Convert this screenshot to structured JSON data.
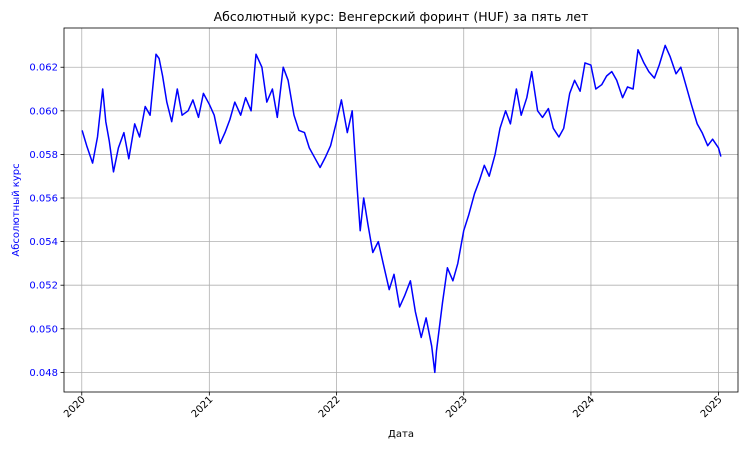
{
  "chart_data": {
    "type": "line",
    "title": "Абсолютный курс: Венгерский форинт (HUF) за пять лет",
    "xlabel": "Дата",
    "ylabel": "Абсолютный курс",
    "xlim": [
      "2019-11-11",
      "2025-02-26"
    ],
    "ylim": [
      0.0471,
      0.0638
    ],
    "grid": true,
    "x_ticks": [
      "2020",
      "2021",
      "2022",
      "2023",
      "2024",
      "2025"
    ],
    "y_ticks": [
      "0.048",
      "0.050",
      "0.052",
      "0.054",
      "0.056",
      "0.058",
      "0.060",
      "0.062"
    ],
    "colors": {
      "line": "#0000ff",
      "y_axis": "#0000ff"
    },
    "series": [
      {
        "x": [
          "2020-01-02",
          "2020-01-15",
          "2020-02-01",
          "2020-02-15",
          "2020-03-01",
          "2020-03-10",
          "2020-03-20",
          "2020-04-01",
          "2020-04-15",
          "2020-05-01",
          "2020-05-15",
          "2020-06-01",
          "2020-06-15",
          "2020-07-01",
          "2020-07-15",
          "2020-08-01",
          "2020-08-10",
          "2020-08-20",
          "2020-09-01",
          "2020-09-15",
          "2020-10-01",
          "2020-10-15",
          "2020-11-01",
          "2020-11-15",
          "2020-12-01",
          "2020-12-15",
          "2021-01-01",
          "2021-01-15",
          "2021-02-01",
          "2021-02-15",
          "2021-03-01",
          "2021-03-15",
          "2021-04-01",
          "2021-04-15",
          "2021-05-01",
          "2021-05-15",
          "2021-06-01",
          "2021-06-15",
          "2021-07-01",
          "2021-07-15",
          "2021-08-01",
          "2021-08-15",
          "2021-09-01",
          "2021-09-15",
          "2021-10-01",
          "2021-10-15",
          "2021-11-01",
          "2021-11-15",
          "2021-12-01",
          "2021-12-15",
          "2022-01-01",
          "2022-01-15",
          "2022-02-01",
          "2022-02-15",
          "2022-03-01",
          "2022-03-10",
          "2022-03-20",
          "2022-04-01",
          "2022-04-15",
          "2022-05-01",
          "2022-05-15",
          "2022-06-01",
          "2022-06-15",
          "2022-07-01",
          "2022-07-15",
          "2022-08-01",
          "2022-08-15",
          "2022-09-01",
          "2022-09-15",
          "2022-10-01",
          "2022-10-10",
          "2022-10-15",
          "2022-11-01",
          "2022-11-15",
          "2022-12-01",
          "2022-12-15",
          "2023-01-01",
          "2023-01-15",
          "2023-02-01",
          "2023-02-15",
          "2023-03-01",
          "2023-03-15",
          "2023-04-01",
          "2023-04-15",
          "2023-05-01",
          "2023-05-15",
          "2023-06-01",
          "2023-06-15",
          "2023-07-01",
          "2023-07-15",
          "2023-08-01",
          "2023-08-15",
          "2023-09-01",
          "2023-09-15",
          "2023-10-01",
          "2023-10-15",
          "2023-11-01",
          "2023-11-15",
          "2023-12-01",
          "2023-12-15",
          "2024-01-01",
          "2024-01-15",
          "2024-02-01",
          "2024-02-15",
          "2024-03-01",
          "2024-03-15",
          "2024-04-01",
          "2024-04-15",
          "2024-05-01",
          "2024-05-15",
          "2024-06-01",
          "2024-06-15",
          "2024-07-01",
          "2024-07-15",
          "2024-08-01",
          "2024-08-15",
          "2024-09-01",
          "2024-09-15",
          "2024-10-01",
          "2024-10-15",
          "2024-11-01",
          "2024-11-15",
          "2024-12-01",
          "2024-12-15",
          "2025-01-01",
          "2025-01-08"
        ],
        "values": [
          0.0591,
          0.0584,
          0.0576,
          0.0588,
          0.061,
          0.0595,
          0.0586,
          0.0572,
          0.0583,
          0.059,
          0.0578,
          0.0594,
          0.0588,
          0.0602,
          0.0598,
          0.0626,
          0.0624,
          0.0616,
          0.0604,
          0.0595,
          0.061,
          0.0598,
          0.06,
          0.0605,
          0.0597,
          0.0608,
          0.0603,
          0.0598,
          0.0585,
          0.059,
          0.0596,
          0.0604,
          0.0598,
          0.0606,
          0.06,
          0.0626,
          0.062,
          0.0604,
          0.061,
          0.0597,
          0.062,
          0.0614,
          0.0598,
          0.0591,
          0.059,
          0.0583,
          0.0578,
          0.0574,
          0.0579,
          0.0584,
          0.0595,
          0.0605,
          0.059,
          0.06,
          0.0565,
          0.0545,
          0.056,
          0.0548,
          0.0535,
          0.054,
          0.053,
          0.0518,
          0.0525,
          0.051,
          0.0515,
          0.0522,
          0.0508,
          0.0496,
          0.0505,
          0.0492,
          0.048,
          0.049,
          0.0512,
          0.0528,
          0.0522,
          0.053,
          0.0545,
          0.0552,
          0.0562,
          0.0568,
          0.0575,
          0.057,
          0.058,
          0.0592,
          0.06,
          0.0594,
          0.061,
          0.0598,
          0.0606,
          0.0618,
          0.06,
          0.0597,
          0.0601,
          0.0592,
          0.0588,
          0.0592,
          0.0608,
          0.0614,
          0.0609,
          0.0622,
          0.0621,
          0.061,
          0.0612,
          0.0616,
          0.0618,
          0.0614,
          0.0606,
          0.0611,
          0.061,
          0.0628,
          0.0622,
          0.0618,
          0.0615,
          0.0621,
          0.063,
          0.0625,
          0.0617,
          0.062,
          0.0611,
          0.0603,
          0.0594,
          0.059,
          0.0584,
          0.0587,
          0.0583,
          0.0579
        ]
      }
    ]
  }
}
